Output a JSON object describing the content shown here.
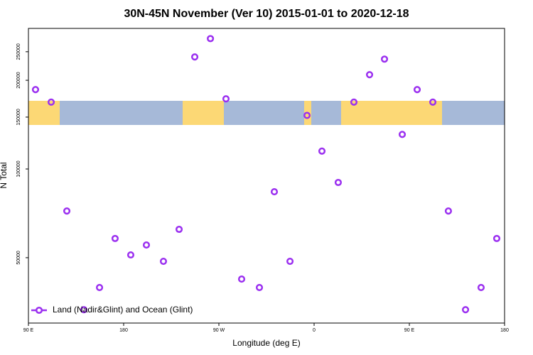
{
  "chart_data": {
    "type": "scatter",
    "title": "30N-45N November (Ver 10)   2015-01-01 to 2020-12-18",
    "x_label": "Longitude (deg E)",
    "y_label": "N Total",
    "log_y": true,
    "color": "#9b30f0",
    "legend_position": "bottom-left",
    "xlim": [
      90,
      540
    ],
    "ylim": [
      30000,
      300000
    ],
    "xticks": [
      {
        "value": 90,
        "label": "90 E"
      },
      180,
      {
        "value": 270,
        "label": "90 W"
      },
      {
        "value": 360,
        "label": "0"
      },
      {
        "value": 450,
        "label": "90 E"
      },
      {
        "value": 540,
        "label": "180"
      }
    ],
    "yticks": [
      50000,
      100000,
      150000,
      200000,
      250000
    ],
    "series": [
      {
        "name": "Land (Nadir&Glint) and Ocean (Glint)",
        "color": "#9b30f0",
        "x": [
          96.7,
          111.5,
          126.3,
          142.4,
          157.2,
          171.9,
          186.7,
          201.5,
          217.6,
          232.4,
          247.2,
          262,
          276.7,
          291.5,
          308.3,
          322.4,
          337.2,
          353.3,
          367.4,
          382.8,
          397.6,
          412.4,
          426.5,
          443.3,
          457.4,
          472.2,
          486.9,
          503.1,
          517.8,
          532.6
        ],
        "values": [
          186000,
          168600,
          72000,
          33300,
          39600,
          58100,
          51100,
          55200,
          48600,
          62400,
          240000,
          277000,
          173000,
          42300,
          39600,
          83700,
          48600,
          152000,
          115000,
          90000,
          168600,
          209000,
          236000,
          131000,
          186000,
          168600,
          72000,
          33300,
          39600,
          58100
        ]
      }
    ]
  }
}
